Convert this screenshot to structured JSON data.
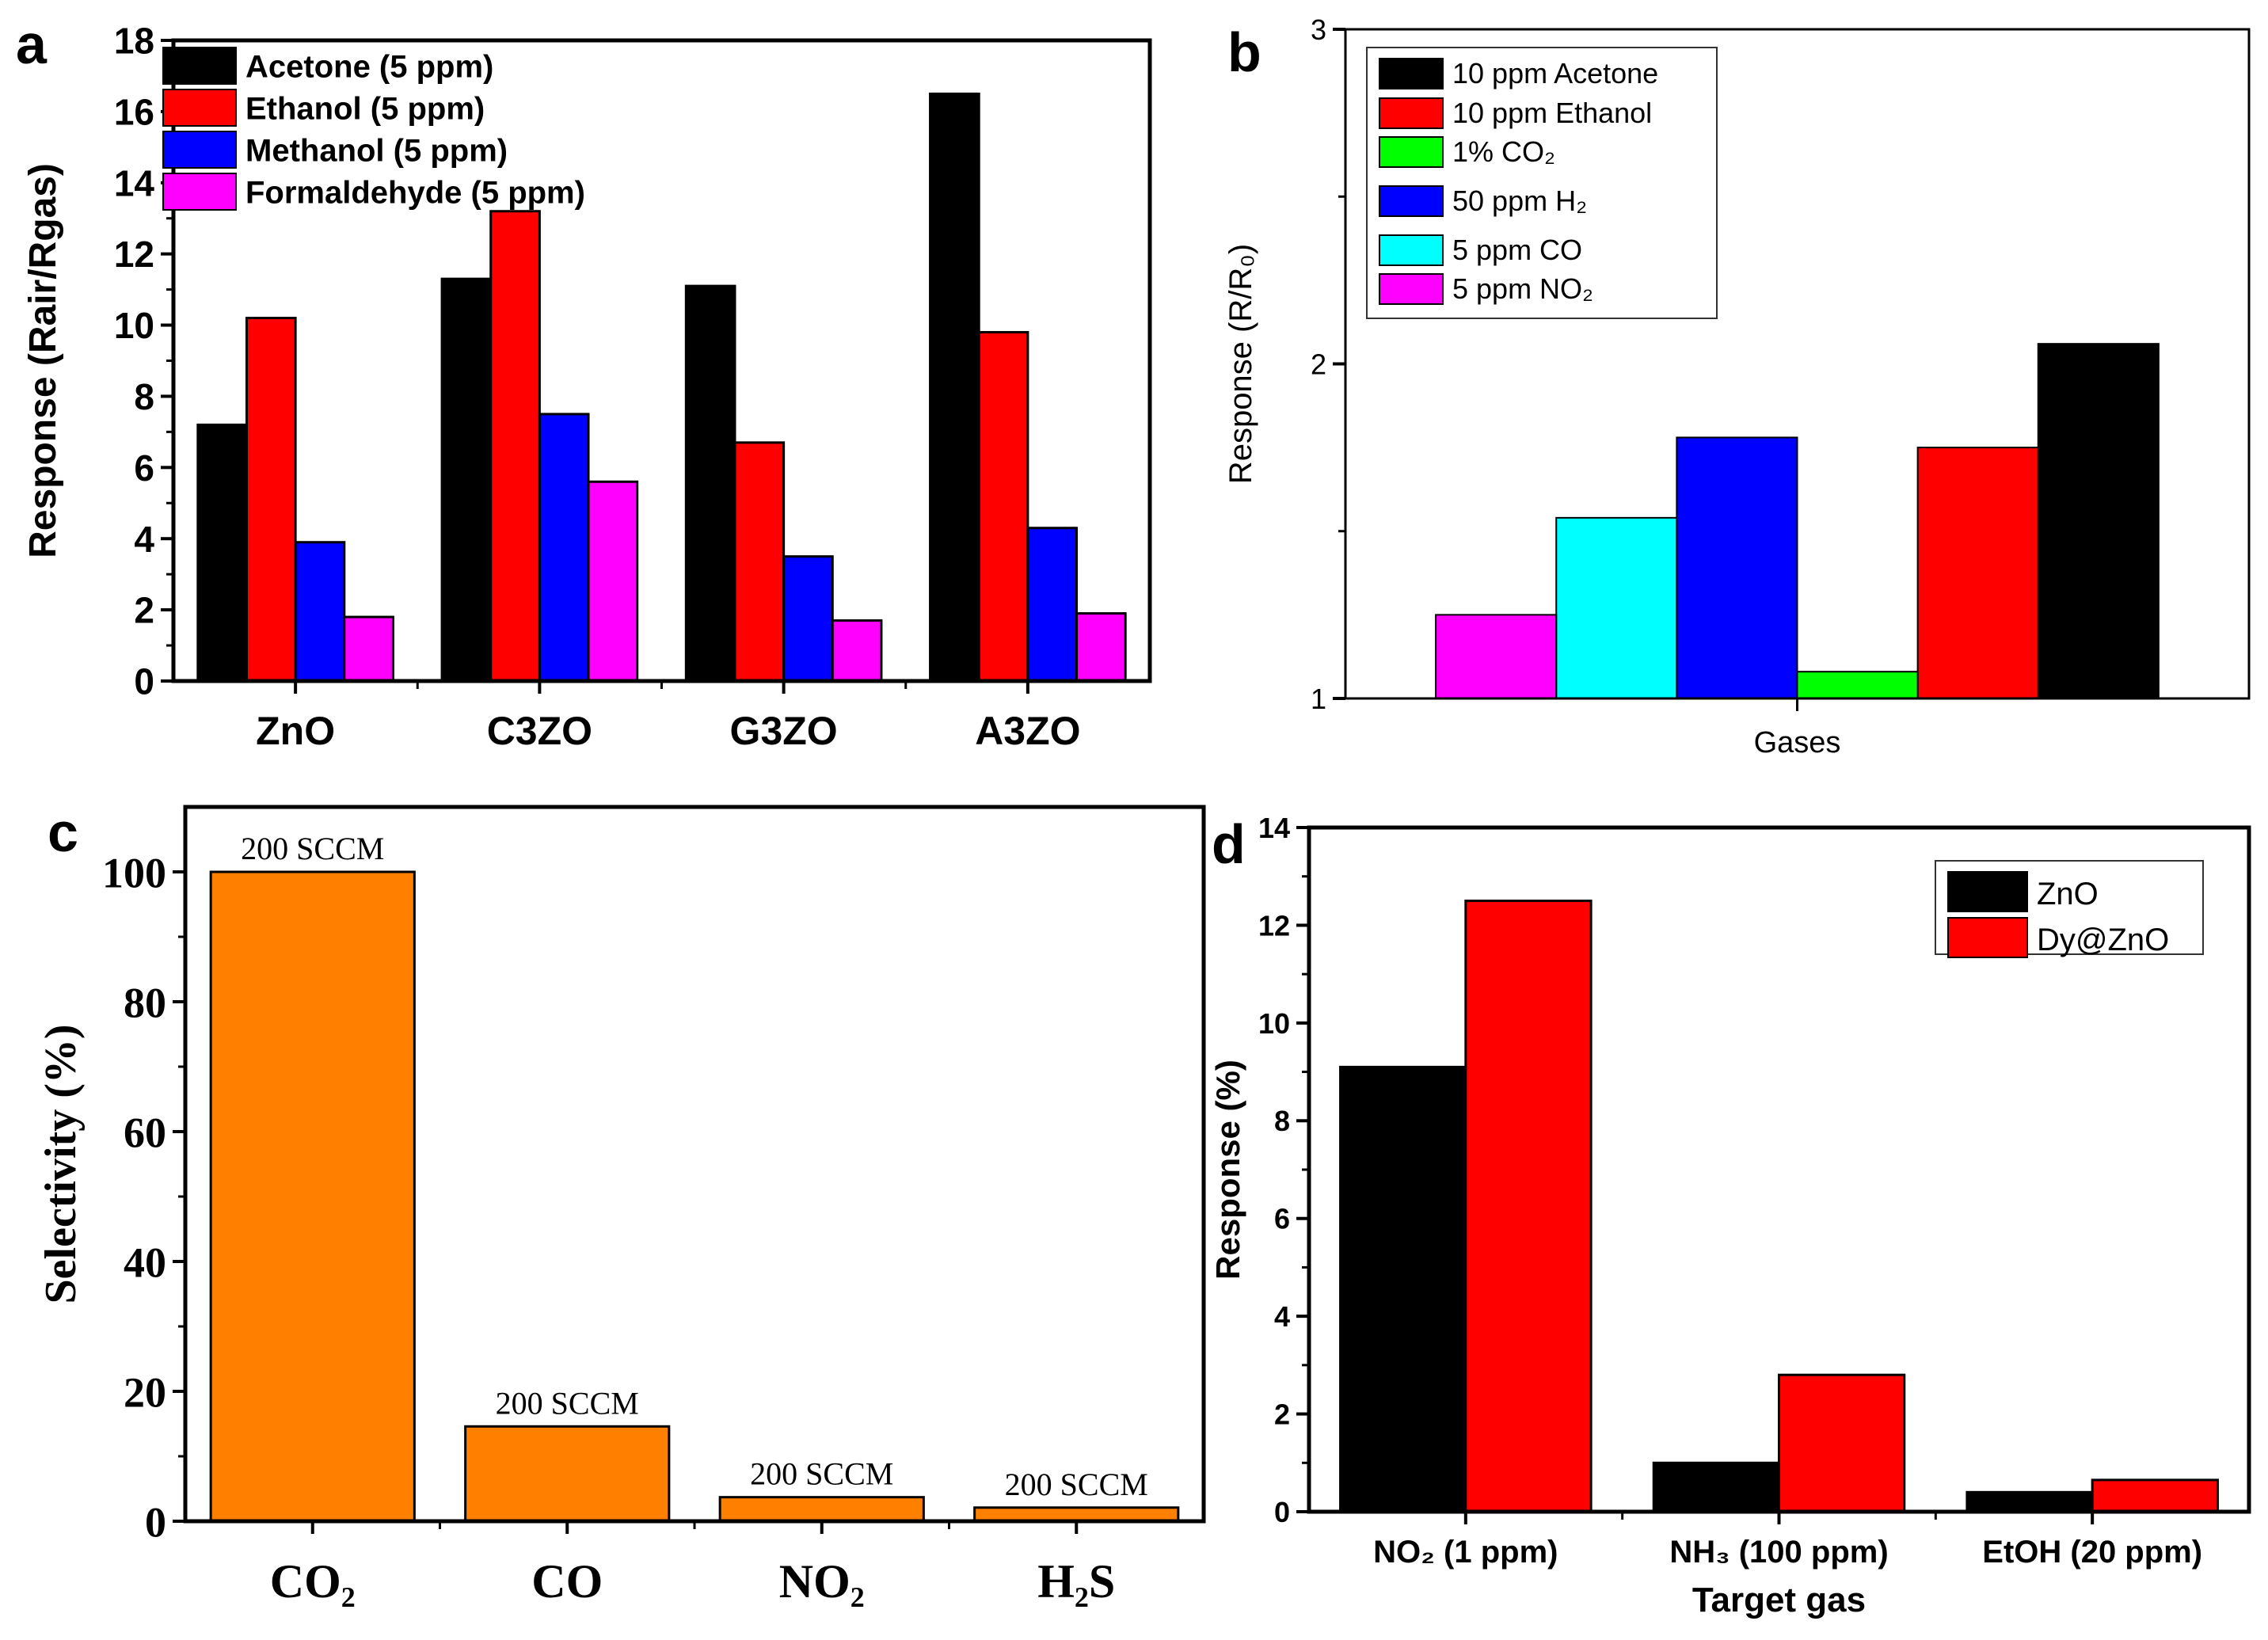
{
  "chart_data": [
    {
      "panel": "a",
      "type": "bar",
      "categories": [
        "ZnO",
        "C3ZO",
        "G3ZO",
        "A3ZO"
      ],
      "series": [
        {
          "name": "Acetone (5 ppm)",
          "color": "#000000",
          "values": [
            7.2,
            11.3,
            11.1,
            16.5
          ]
        },
        {
          "name": "Ethanol (5 ppm)",
          "color": "#ff0000",
          "values": [
            10.2,
            13.2,
            6.7,
            9.8
          ]
        },
        {
          "name": "Methanol (5 ppm)",
          "color": "#0000ff",
          "values": [
            3.9,
            7.5,
            3.5,
            4.3
          ]
        },
        {
          "name": "Formaldehyde (5 ppm)",
          "color": "#ff00ff",
          "values": [
            1.8,
            5.6,
            1.7,
            1.9
          ]
        }
      ],
      "xlabel": "",
      "ylabel": "Response (Rair/Rgas)",
      "ylim": [
        0,
        18
      ],
      "yticks": [
        "0",
        "2",
        "4",
        "6",
        "8",
        "10",
        "12",
        "14",
        "16",
        "18"
      ],
      "legend": "top-left"
    },
    {
      "panel": "b",
      "type": "bar",
      "categories": [
        "Gases"
      ],
      "series": [
        {
          "name": "10 ppm Acetone",
          "color": "#000000",
          "values": [
            2.06
          ],
          "order": 5
        },
        {
          "name": "10 ppm Ethanol",
          "color": "#ff0000",
          "values": [
            1.75
          ],
          "order": 4
        },
        {
          "name": "1% CO₂",
          "color": "#00ff00",
          "values": [
            1.08
          ],
          "order": 3
        },
        {
          "name": "50 ppm H₂",
          "color": "#0000ff",
          "values": [
            1.78
          ],
          "order": 2
        },
        {
          "name": "5 ppm CO",
          "color": "#00ffff",
          "values": [
            1.54
          ],
          "order": 1
        },
        {
          "name": "5 ppm NO₂",
          "color": "#ff00ff",
          "values": [
            1.25
          ],
          "order": 0
        }
      ],
      "xlabel": "Gases",
      "ylabel": "Response (R/R₀)",
      "ylim": [
        1,
        3
      ],
      "yticks": [
        "1",
        "2",
        "3"
      ],
      "legend": "top-left"
    },
    {
      "panel": "c",
      "type": "bar",
      "categories": [
        "CO₂",
        "CO",
        "NO₂",
        "H₂S"
      ],
      "series": [
        {
          "name": "Selectivity",
          "color": "#ff8000",
          "values": [
            100,
            14.6,
            3.7,
            2.1
          ]
        }
      ],
      "data_labels": [
        "200 SCCM",
        "200 SCCM",
        "200 SCCM",
        "200 SCCM"
      ],
      "xlabel": "",
      "ylabel": "Selectivity (%)",
      "ylim": [
        0,
        110
      ],
      "yticks": [
        "0",
        "20",
        "40",
        "60",
        "80",
        "100"
      ],
      "legend": "none"
    },
    {
      "panel": "d",
      "type": "bar",
      "categories": [
        "NO₂ (1 ppm)",
        "NH₃ (100 ppm)",
        "EtOH (20 ppm)"
      ],
      "series": [
        {
          "name": "ZnO",
          "color": "#000000",
          "values": [
            9.1,
            1.0,
            0.4
          ]
        },
        {
          "name": "Dy@ZnO",
          "color": "#ff0000",
          "values": [
            12.5,
            2.8,
            0.65
          ]
        }
      ],
      "xlabel": "Target gas",
      "ylabel": "Response (%)",
      "ylim": [
        0,
        14
      ],
      "yticks": [
        "0",
        "2",
        "4",
        "6",
        "8",
        "10",
        "12",
        "14"
      ],
      "legend": "top-right"
    }
  ]
}
